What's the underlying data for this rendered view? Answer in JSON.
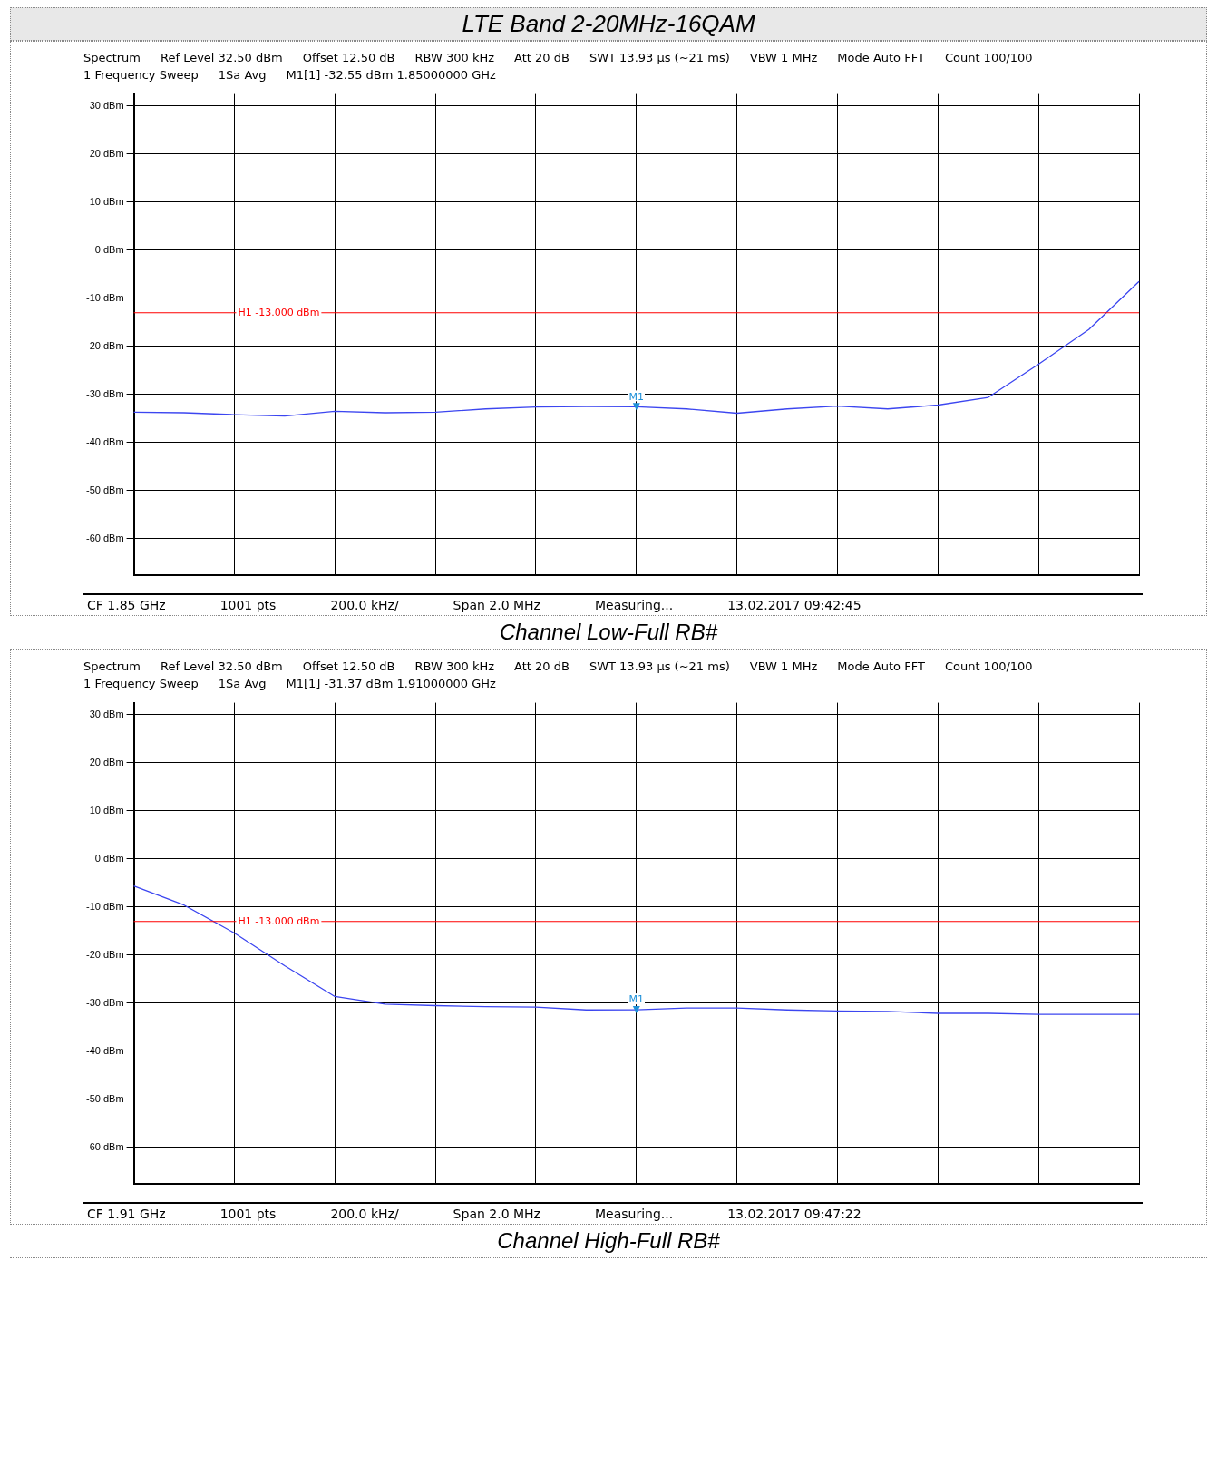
{
  "chart_data": [
    {
      "type": "line",
      "title": "LTE Band 2-20MHz-16QAM",
      "subtitle": "Channel Low-Full RB#",
      "categories": [
        null,
        null,
        null,
        null,
        null,
        null,
        null,
        null,
        null,
        null,
        null,
        null,
        null,
        null,
        null,
        null,
        null,
        null,
        null,
        null,
        null
      ],
      "series": [
        {
          "color": "#3c46f0",
          "values": [
            -33.7,
            -33.8,
            -34.2,
            -34.5,
            -33.5,
            -33.8,
            -33.7,
            -33.0,
            -32.6,
            -32.5,
            -32.55,
            -33.0,
            -33.9,
            -33.0,
            -32.4,
            -33.0,
            -32.2,
            -30.6,
            -23.7,
            -16.5,
            -6.5
          ]
        }
      ],
      "ylim": [
        -67.5,
        32.5
      ],
      "yticks": [
        {
          "value": 30,
          "label": "30 dBm"
        },
        {
          "value": 20,
          "label": "20 dBm"
        },
        {
          "value": 10,
          "label": "10 dBm"
        },
        {
          "value": 0,
          "label": "0 dBm"
        },
        {
          "value": -10,
          "label": "-10 dBm"
        },
        {
          "value": -20,
          "label": "-20 dBm"
        },
        {
          "value": -30,
          "label": "-30 dBm"
        },
        {
          "value": -40,
          "label": "-40 dBm"
        },
        {
          "value": -50,
          "label": "-50 dBm"
        },
        {
          "value": -60,
          "label": "-60 dBm"
        }
      ],
      "grid": true,
      "marker": "none",
      "line_style": "solid",
      "ref_lines": [
        {
          "axis": "y",
          "value": -13,
          "label": "H1 -13.000 dBm",
          "color": "#ff0000"
        }
      ],
      "annotations": [
        "Spectrum",
        "Ref Level 32.50 dBm",
        "Offset 12.50 dB",
        "RBW 300 kHz",
        "Att 20 dB",
        "SWT 13.93 µs (~21 ms)",
        "VBW 1 MHz",
        "Mode Auto FFT",
        "Count 100/100",
        "1 Frequency Sweep",
        "1Sa Avg",
        "M1[1] -32.55 dBm 1.85000000 GHz",
        {
          "text": "M1",
          "y": -32.55
        },
        "CF 1.85 GHz",
        "1001 pts",
        "200.0 kHz/",
        "Span 2.0 MHz",
        "Measuring...",
        "13.02.2017 09:42:45"
      ]
    },
    {
      "type": "line",
      "subtitle": "Channel High-Full RB#",
      "categories": [
        null,
        null,
        null,
        null,
        null,
        null,
        null,
        null,
        null,
        null,
        null,
        null,
        null,
        null,
        null,
        null,
        null,
        null,
        null,
        null,
        null
      ],
      "series": [
        {
          "color": "#3c46f0",
          "values": [
            -5.6,
            -9.6,
            -15.4,
            -22.2,
            -28.6,
            -30.2,
            -30.5,
            -30.7,
            -30.8,
            -31.4,
            -31.37,
            -31.0,
            -31.0,
            -31.4,
            -31.6,
            -31.7,
            -32.1,
            -32.1,
            -32.3,
            -32.3,
            -32.3
          ]
        }
      ],
      "ylim": [
        -67.5,
        32.5
      ],
      "yticks": [
        {
          "value": 30,
          "label": "30 dBm"
        },
        {
          "value": 20,
          "label": "20 dBm"
        },
        {
          "value": 10,
          "label": "10 dBm"
        },
        {
          "value": 0,
          "label": "0 dBm"
        },
        {
          "value": -10,
          "label": "-10 dBm"
        },
        {
          "value": -20,
          "label": "-20 dBm"
        },
        {
          "value": -30,
          "label": "-30 dBm"
        },
        {
          "value": -40,
          "label": "-40 dBm"
        },
        {
          "value": -50,
          "label": "-50 dBm"
        },
        {
          "value": -60,
          "label": "-60 dBm"
        }
      ],
      "grid": true,
      "marker": "none",
      "line_style": "solid",
      "ref_lines": [
        {
          "axis": "y",
          "value": -13,
          "label": "H1 -13.000 dBm",
          "color": "#ff0000"
        }
      ],
      "annotations": [
        "Spectrum",
        "Ref Level 32.50 dBm",
        "Offset 12.50 dB",
        "RBW 300 kHz",
        "Att 20 dB",
        "SWT 13.93 µs (~21 ms)",
        "VBW 1 MHz",
        "Mode Auto FFT",
        "Count 100/100",
        "1 Frequency Sweep",
        "1Sa Avg",
        "M1[1] -31.37 dBm 1.91000000 GHz",
        {
          "text": "M1",
          "y": -31.37
        },
        "CF 1.91 GHz",
        "1001 pts",
        "200.0 kHz/",
        "Span 2.0 MHz",
        "Measuring...",
        "13.02.2017 09:47:22"
      ]
    }
  ]
}
